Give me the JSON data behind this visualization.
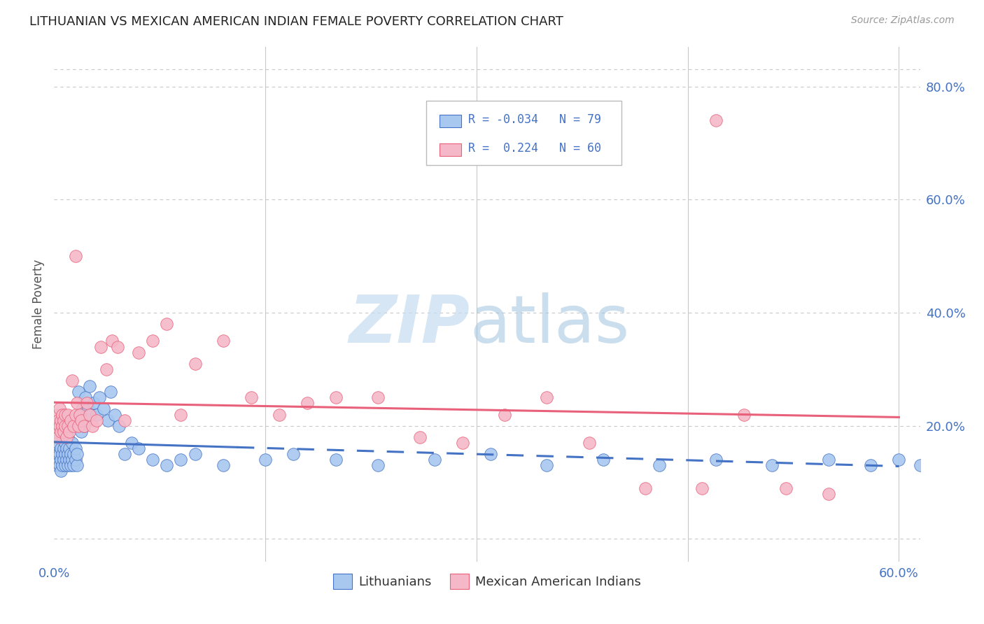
{
  "title": "LITHUANIAN VS MEXICAN AMERICAN INDIAN FEMALE POVERTY CORRELATION CHART",
  "source": "Source: ZipAtlas.com",
  "ylabel": "Female Poverty",
  "blue_color": "#A8C8F0",
  "pink_color": "#F5B8C8",
  "blue_line_color": "#4472C4",
  "pink_line_color": "#E8607A",
  "blue_R": -0.034,
  "pink_R": 0.224,
  "blue_N": 79,
  "pink_N": 60,
  "blue_x": [
    0.001,
    0.002,
    0.002,
    0.003,
    0.003,
    0.003,
    0.004,
    0.004,
    0.005,
    0.005,
    0.005,
    0.006,
    0.006,
    0.006,
    0.007,
    0.007,
    0.007,
    0.008,
    0.008,
    0.008,
    0.009,
    0.009,
    0.01,
    0.01,
    0.01,
    0.011,
    0.011,
    0.012,
    0.012,
    0.013,
    0.013,
    0.014,
    0.014,
    0.015,
    0.015,
    0.016,
    0.016,
    0.017,
    0.018,
    0.019,
    0.02,
    0.021,
    0.022,
    0.023,
    0.024,
    0.025,
    0.026,
    0.028,
    0.03,
    0.032,
    0.035,
    0.038,
    0.04,
    0.043,
    0.046,
    0.05,
    0.055,
    0.06,
    0.07,
    0.08,
    0.09,
    0.1,
    0.12,
    0.15,
    0.17,
    0.2,
    0.23,
    0.27,
    0.31,
    0.35,
    0.39,
    0.43,
    0.47,
    0.51,
    0.55,
    0.58,
    0.6,
    0.615,
    0.62
  ],
  "blue_y": [
    0.14,
    0.13,
    0.16,
    0.14,
    0.15,
    0.17,
    0.13,
    0.15,
    0.12,
    0.14,
    0.16,
    0.13,
    0.15,
    0.18,
    0.14,
    0.16,
    0.19,
    0.13,
    0.15,
    0.17,
    0.14,
    0.16,
    0.13,
    0.15,
    0.18,
    0.14,
    0.16,
    0.13,
    0.15,
    0.14,
    0.17,
    0.13,
    0.15,
    0.14,
    0.16,
    0.13,
    0.15,
    0.26,
    0.22,
    0.19,
    0.23,
    0.2,
    0.25,
    0.21,
    0.23,
    0.27,
    0.22,
    0.24,
    0.22,
    0.25,
    0.23,
    0.21,
    0.26,
    0.22,
    0.2,
    0.15,
    0.17,
    0.16,
    0.14,
    0.13,
    0.14,
    0.15,
    0.13,
    0.14,
    0.15,
    0.14,
    0.13,
    0.14,
    0.15,
    0.13,
    0.14,
    0.13,
    0.14,
    0.13,
    0.14,
    0.13,
    0.14,
    0.13,
    0.14
  ],
  "pink_x": [
    0.001,
    0.002,
    0.002,
    0.003,
    0.003,
    0.004,
    0.004,
    0.005,
    0.005,
    0.006,
    0.006,
    0.007,
    0.007,
    0.008,
    0.008,
    0.009,
    0.01,
    0.01,
    0.011,
    0.012,
    0.013,
    0.014,
    0.015,
    0.016,
    0.017,
    0.018,
    0.019,
    0.021,
    0.023,
    0.025,
    0.027,
    0.03,
    0.033,
    0.037,
    0.041,
    0.045,
    0.05,
    0.06,
    0.07,
    0.08,
    0.09,
    0.1,
    0.12,
    0.14,
    0.16,
    0.18,
    0.2,
    0.23,
    0.26,
    0.29,
    0.32,
    0.35,
    0.38,
    0.42,
    0.46,
    0.49,
    0.52,
    0.55,
    0.47,
    0.015
  ],
  "pink_y": [
    0.2,
    0.19,
    0.22,
    0.21,
    0.18,
    0.2,
    0.23,
    0.19,
    0.21,
    0.2,
    0.22,
    0.19,
    0.21,
    0.2,
    0.22,
    0.18,
    0.2,
    0.22,
    0.19,
    0.21,
    0.28,
    0.2,
    0.22,
    0.24,
    0.2,
    0.22,
    0.21,
    0.2,
    0.24,
    0.22,
    0.2,
    0.21,
    0.34,
    0.3,
    0.35,
    0.34,
    0.21,
    0.33,
    0.35,
    0.38,
    0.22,
    0.31,
    0.35,
    0.25,
    0.22,
    0.24,
    0.25,
    0.25,
    0.18,
    0.17,
    0.22,
    0.25,
    0.17,
    0.09,
    0.09,
    0.22,
    0.09,
    0.08,
    0.74,
    0.5
  ],
  "xlim_min": 0.0,
  "xlim_max": 0.615,
  "ylim_min": -0.04,
  "ylim_max": 0.87,
  "ytick_values": [
    0.0,
    0.2,
    0.4,
    0.6,
    0.8
  ],
  "ytick_right_labels": [
    "",
    "20.0%",
    "40.0%",
    "60.0%",
    "80.0%"
  ],
  "xtick_left_label": "0.0%",
  "xtick_right_label": "60.0%",
  "blue_line_solid_end": 0.13,
  "blue_line_end": 0.6,
  "pink_line_start": 0.0,
  "pink_line_end": 0.6,
  "grid_color": "#C8C8C8",
  "watermark_zip_color": "#C5DCF0",
  "watermark_atlas_color": "#A0C4E0"
}
